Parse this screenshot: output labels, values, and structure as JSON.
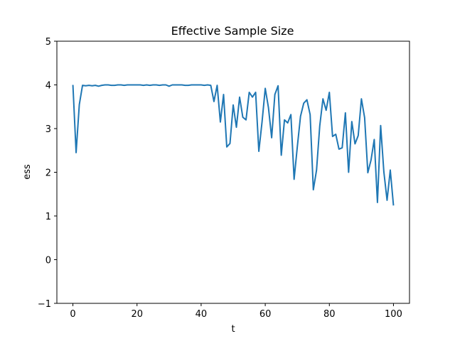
{
  "chart_data": {
    "type": "line",
    "title": "Effective Sample Size",
    "xlabel": "t",
    "ylabel": "ess",
    "xlim": [
      -5,
      105
    ],
    "ylim": [
      -1,
      5
    ],
    "xticks": [
      0,
      20,
      40,
      60,
      80,
      100
    ],
    "yticks": [
      -1,
      0,
      1,
      2,
      3,
      4,
      5
    ],
    "xtick_labels": [
      "0",
      "20",
      "40",
      "60",
      "80",
      "100"
    ],
    "ytick_labels": [
      "−1",
      "0",
      "1",
      "2",
      "3",
      "4",
      "5"
    ],
    "grid": false,
    "series": [
      {
        "color": "#1f77b4",
        "x": [
          0,
          1,
          2,
          3,
          4,
          5,
          6,
          7,
          8,
          9,
          10,
          11,
          12,
          13,
          14,
          15,
          16,
          17,
          18,
          19,
          20,
          21,
          22,
          23,
          24,
          25,
          26,
          27,
          28,
          29,
          30,
          31,
          32,
          33,
          34,
          35,
          36,
          37,
          38,
          39,
          40,
          41,
          42,
          43,
          44,
          45,
          46,
          47,
          48,
          49,
          50,
          51,
          52,
          53,
          54,
          55,
          56,
          57,
          58,
          59,
          60,
          61,
          62,
          63,
          64,
          65,
          66,
          67,
          68,
          69,
          70,
          71,
          72,
          73,
          74,
          75,
          76,
          77,
          78,
          79,
          80,
          81,
          82,
          83,
          84,
          85,
          86,
          87,
          88,
          89,
          90,
          91,
          92,
          93,
          94,
          95,
          96,
          97,
          98,
          99,
          100
        ],
        "y": [
          4.0,
          2.45,
          3.55,
          3.99,
          3.98,
          3.99,
          3.98,
          3.99,
          3.97,
          3.99,
          4.0,
          4.0,
          3.99,
          3.99,
          4.0,
          4.0,
          3.99,
          4.0,
          4.0,
          4.0,
          4.0,
          4.0,
          3.99,
          4.0,
          3.99,
          4.0,
          4.0,
          3.99,
          4.0,
          4.0,
          3.97,
          4.0,
          4.0,
          4.0,
          4.0,
          3.99,
          3.99,
          4.0,
          4.0,
          4.0,
          4.0,
          3.99,
          4.0,
          3.99,
          3.62,
          3.99,
          3.15,
          3.78,
          2.58,
          2.66,
          3.54,
          3.03,
          3.72,
          3.26,
          3.2,
          3.83,
          3.72,
          3.83,
          2.48,
          3.15,
          3.92,
          3.48,
          2.79,
          3.78,
          3.98,
          2.39,
          3.2,
          3.13,
          3.32,
          1.84,
          2.58,
          3.28,
          3.58,
          3.66,
          3.32,
          1.6,
          2.05,
          3.06,
          3.68,
          3.42,
          3.83,
          2.82,
          2.87,
          2.53,
          2.56,
          3.36,
          2.0,
          3.16,
          2.65,
          2.84,
          3.68,
          3.25,
          1.99,
          2.28,
          2.75,
          1.31,
          3.07,
          2.01,
          1.36,
          2.05,
          1.24
        ]
      }
    ]
  }
}
